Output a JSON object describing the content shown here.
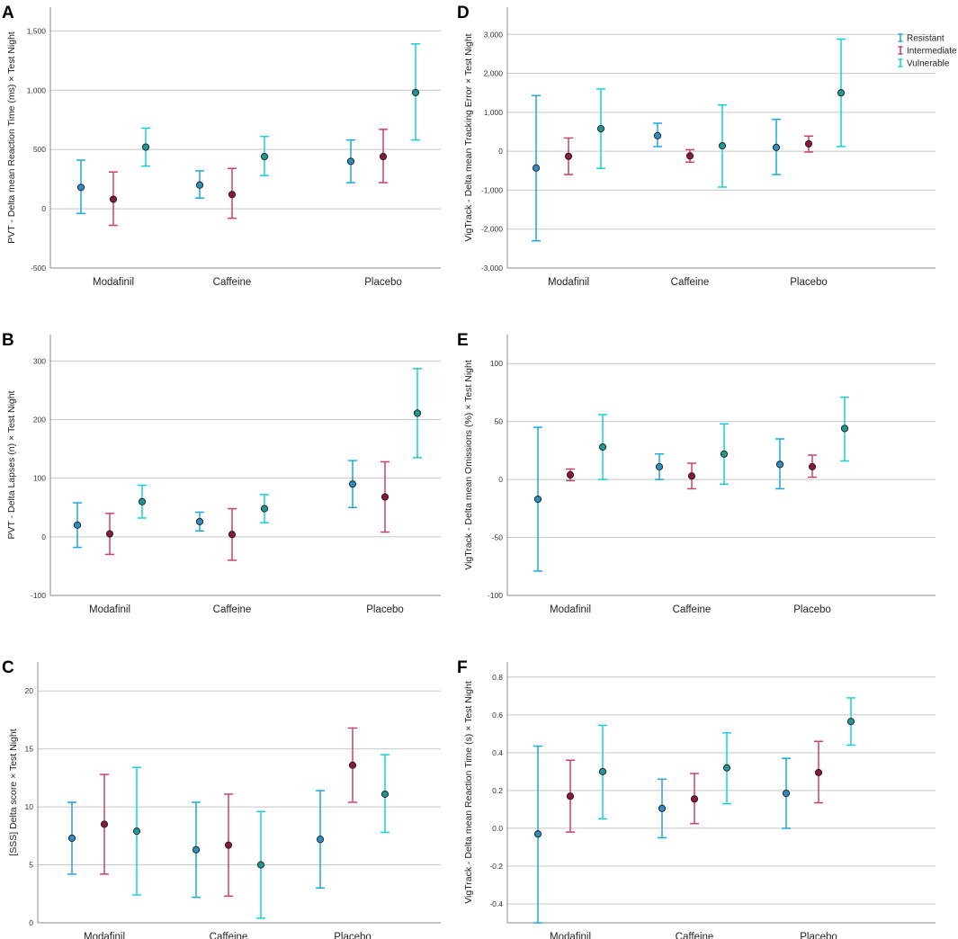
{
  "colors": {
    "Resistant": "#1ba8dc",
    "Intermediate": "#cc4070",
    "Vulnerable": "#19cfd6",
    "grid": "#c8c8c8",
    "axis": "#888888"
  },
  "legend": {
    "items": [
      {
        "label": "Resistant",
        "color": "#1ba8dc"
      },
      {
        "label": "Intermediate",
        "color": "#cc4070"
      },
      {
        "label": "Vulnerable",
        "color": "#19cfd6"
      }
    ]
  },
  "chart_data": [
    {
      "panel": "A",
      "type": "scatter",
      "ylabel": "PVT - Delta mean Reaction Time (ms) × Test Night",
      "categories": [
        "Modafinil",
        "Caffeine",
        "Placebo"
      ],
      "ylim": [
        -500,
        1700
      ],
      "ticks": [
        -500,
        0,
        500,
        1000,
        1500
      ],
      "tick_labels": [
        "-500",
        "0",
        "500",
        "1,000",
        "1,500"
      ],
      "series": [
        {
          "name": "Resistant",
          "mean": [
            180,
            200,
            400
          ],
          "lower": [
            -40,
            90,
            220
          ],
          "upper": [
            410,
            320,
            580
          ]
        },
        {
          "name": "Intermediate",
          "mean": [
            80,
            120,
            440
          ],
          "lower": [
            -140,
            -80,
            220
          ],
          "upper": [
            310,
            340,
            670
          ]
        },
        {
          "name": "Vulnerable",
          "mean": [
            520,
            440,
            980
          ],
          "lower": [
            360,
            280,
            580
          ],
          "upper": [
            680,
            610,
            1390
          ]
        }
      ]
    },
    {
      "panel": "D",
      "type": "scatter",
      "ylabel": "VigTrack - Delta mean Tracking Error × Test Night",
      "categories": [
        "Modafinil",
        "Caffeine",
        "Placebo"
      ],
      "ylim": [
        -3000,
        3700
      ],
      "ticks": [
        -3000,
        -2000,
        -1000,
        0,
        1000,
        2000,
        3000
      ],
      "tick_labels": [
        "-3,000",
        "-2,000",
        "-1,000",
        "0",
        "1,000",
        "2,000",
        "3,000"
      ],
      "series": [
        {
          "name": "Resistant",
          "mean": [
            -430,
            400,
            100
          ],
          "lower": [
            -2300,
            120,
            -600
          ],
          "upper": [
            1430,
            720,
            820
          ]
        },
        {
          "name": "Intermediate",
          "mean": [
            -130,
            -120,
            190
          ],
          "lower": [
            -600,
            -280,
            -20
          ],
          "upper": [
            340,
            40,
            390
          ]
        },
        {
          "name": "Vulnerable",
          "mean": [
            580,
            140,
            1500
          ],
          "lower": [
            -440,
            -920,
            120
          ],
          "upper": [
            1600,
            1190,
            2880
          ]
        }
      ]
    },
    {
      "panel": "B",
      "type": "scatter",
      "ylabel": "PVT - Delta Lapses (n) × Test Night",
      "categories": [
        "Modafinil",
        "Caffeine",
        "Placebo"
      ],
      "ylim": [
        -100,
        345
      ],
      "ticks": [
        -100,
        0,
        100,
        200,
        300
      ],
      "tick_labels": [
        "-100",
        "0",
        "100",
        "200",
        "300"
      ],
      "series": [
        {
          "name": "Resistant",
          "mean": [
            20,
            26,
            90
          ],
          "lower": [
            -18,
            10,
            50
          ],
          "upper": [
            58,
            42,
            130
          ]
        },
        {
          "name": "Intermediate",
          "mean": [
            5,
            4,
            68
          ],
          "lower": [
            -30,
            -40,
            8
          ],
          "upper": [
            40,
            48,
            128
          ]
        },
        {
          "name": "Vulnerable",
          "mean": [
            60,
            48,
            211
          ],
          "lower": [
            32,
            24,
            135
          ],
          "upper": [
            88,
            72,
            287
          ]
        }
      ]
    },
    {
      "panel": "E",
      "type": "scatter",
      "ylabel": "VigTrack - Delta mean Omissions (%) × Test Night",
      "categories": [
        "Modafinil",
        "Caffeine",
        "Placebo"
      ],
      "ylim": [
        -100,
        125
      ],
      "ticks": [
        -100,
        -50,
        0,
        50,
        100
      ],
      "tick_labels": [
        "-100",
        "-50",
        "0",
        "50",
        "100"
      ],
      "series": [
        {
          "name": "Resistant",
          "mean": [
            -17,
            11,
            13
          ],
          "lower": [
            -79,
            0,
            -8
          ],
          "upper": [
            45,
            22,
            35
          ]
        },
        {
          "name": "Intermediate",
          "mean": [
            4,
            3,
            11
          ],
          "lower": [
            -1,
            -8,
            2
          ],
          "upper": [
            9,
            14,
            21
          ]
        },
        {
          "name": "Vulnerable",
          "mean": [
            28,
            22,
            44
          ],
          "lower": [
            0,
            -4,
            16
          ],
          "upper": [
            56,
            48,
            71
          ]
        }
      ]
    },
    {
      "panel": "C",
      "type": "scatter",
      "ylabel": "[SSS] Delta score × Test Night",
      "categories": [
        "Modafinil",
        "Caffeine",
        "Placebo"
      ],
      "ylim": [
        0,
        22.5
      ],
      "ticks": [
        0,
        5,
        10,
        15,
        20
      ],
      "tick_labels": [
        "0",
        "5",
        "10",
        "15",
        "20"
      ],
      "series": [
        {
          "name": "Resistant",
          "mean": [
            7.3,
            6.3,
            7.2
          ],
          "lower": [
            4.2,
            2.2,
            3.0
          ],
          "upper": [
            10.4,
            10.4,
            11.4
          ]
        },
        {
          "name": "Intermediate",
          "mean": [
            8.5,
            6.7,
            13.6
          ],
          "lower": [
            4.2,
            2.3,
            10.4
          ],
          "upper": [
            12.8,
            11.1,
            16.8
          ]
        },
        {
          "name": "Vulnerable",
          "mean": [
            7.9,
            5.0,
            11.1
          ],
          "lower": [
            2.4,
            0.4,
            7.8
          ],
          "upper": [
            13.4,
            9.6,
            14.5
          ]
        }
      ]
    },
    {
      "panel": "F",
      "type": "scatter",
      "ylabel": "VigTrack - Delta mean Reaction Time (s) × Test Night",
      "categories": [
        "Modafinil",
        "Caffeine",
        "Placebo"
      ],
      "ylim": [
        -0.5,
        0.88
      ],
      "ticks": [
        -0.4,
        -0.2,
        0.0,
        0.2,
        0.4,
        0.6,
        0.8
      ],
      "tick_labels": [
        "-0.4",
        "-0.2",
        "0.0",
        "0.2",
        "0.4",
        "0.6",
        "0.8"
      ],
      "series": [
        {
          "name": "Resistant",
          "mean": [
            -0.03,
            0.105,
            0.185
          ],
          "lower": [
            -0.5,
            -0.05,
            0.0
          ],
          "upper": [
            0.435,
            0.26,
            0.37
          ]
        },
        {
          "name": "Intermediate",
          "mean": [
            0.17,
            0.155,
            0.295
          ],
          "lower": [
            -0.02,
            0.025,
            0.135
          ],
          "upper": [
            0.36,
            0.29,
            0.46
          ]
        },
        {
          "name": "Vulnerable",
          "mean": [
            0.3,
            0.32,
            0.565
          ],
          "lower": [
            0.05,
            0.13,
            0.44
          ],
          "upper": [
            0.545,
            0.505,
            0.69
          ]
        }
      ]
    }
  ]
}
